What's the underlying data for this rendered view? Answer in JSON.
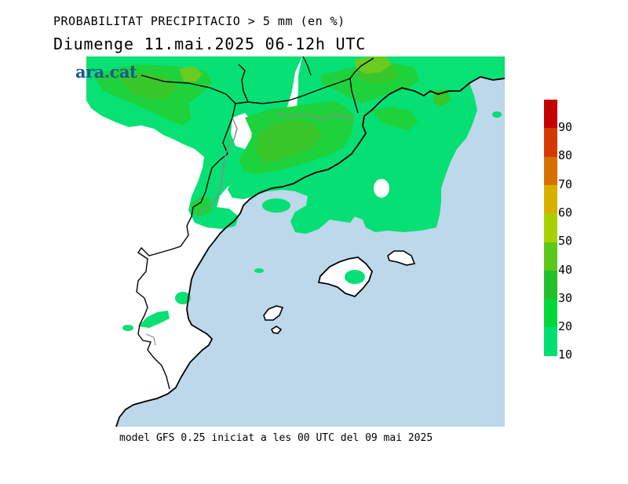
{
  "header": {
    "title": "PROBABILITAT PRECIPITACIO > 5 mm (en %)",
    "subtitle": "Diumenge  11.mai.2025 06-12h UTC"
  },
  "brand": {
    "logo_text": "ara.cat"
  },
  "footer": {
    "model_info": "model GFS 0.25 iniciat a les 00 UTC del 09 mai 2025"
  },
  "legend": {
    "ticks": [
      "90",
      "80",
      "70",
      "60",
      "50",
      "40",
      "30",
      "20",
      "10"
    ],
    "colors": [
      "#c40000",
      "#d43a00",
      "#d87000",
      "#d8b000",
      "#a8d000",
      "#5cc81a",
      "#22c02a",
      "#00d83a",
      "#00e070"
    ]
  },
  "map_colors": {
    "sea": "#bcd8ea",
    "land": "#ffffff",
    "prob_10": "#00e070",
    "prob_20": "#1ed23c",
    "prob_30": "#39c62a",
    "prob_40": "#6acc20"
  }
}
